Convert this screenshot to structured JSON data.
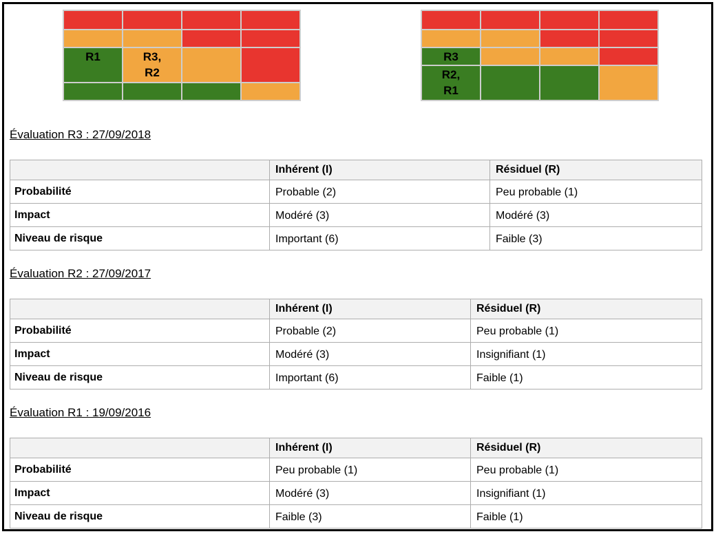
{
  "colors": {
    "red": "#e8352f",
    "orange": "#f2a640",
    "green": "#3a7d22",
    "matrix_border": "#cdcdcd",
    "table_border": "#adadad",
    "header_bg": "#f2f2f2"
  },
  "matrices": [
    {
      "name": "matrix-inherent",
      "rows": [
        [
          {
            "color": "red",
            "label": ""
          },
          {
            "color": "red",
            "label": ""
          },
          {
            "color": "red",
            "label": ""
          },
          {
            "color": "red",
            "label": ""
          }
        ],
        [
          {
            "color": "orange",
            "label": ""
          },
          {
            "color": "orange",
            "label": ""
          },
          {
            "color": "red",
            "label": ""
          },
          {
            "color": "red",
            "label": ""
          }
        ],
        [
          {
            "color": "green",
            "label": "R1"
          },
          {
            "color": "orange",
            "label": "R3,\nR2"
          },
          {
            "color": "orange",
            "label": ""
          },
          {
            "color": "red",
            "label": ""
          }
        ],
        [
          {
            "color": "green",
            "label": ""
          },
          {
            "color": "green",
            "label": ""
          },
          {
            "color": "green",
            "label": ""
          },
          {
            "color": "orange",
            "label": ""
          }
        ]
      ]
    },
    {
      "name": "matrix-residual",
      "rows": [
        [
          {
            "color": "red",
            "label": ""
          },
          {
            "color": "red",
            "label": ""
          },
          {
            "color": "red",
            "label": ""
          },
          {
            "color": "red",
            "label": ""
          }
        ],
        [
          {
            "color": "orange",
            "label": ""
          },
          {
            "color": "orange",
            "label": ""
          },
          {
            "color": "red",
            "label": ""
          },
          {
            "color": "red",
            "label": ""
          }
        ],
        [
          {
            "color": "green",
            "label": "R3"
          },
          {
            "color": "orange",
            "label": ""
          },
          {
            "color": "orange",
            "label": ""
          },
          {
            "color": "red",
            "label": ""
          }
        ],
        [
          {
            "color": "green",
            "label": "R2,\nR1"
          },
          {
            "color": "green",
            "label": ""
          },
          {
            "color": "green",
            "label": ""
          },
          {
            "color": "orange",
            "label": ""
          }
        ]
      ]
    }
  ],
  "sections": [
    {
      "heading": "Évaluation R3 : 27/09/2018",
      "table": {
        "columns": [
          "",
          "Inhérent (I)",
          "Résiduel (R)"
        ],
        "rows": [
          {
            "label": "Probabilité",
            "inherent": "Probable (2)",
            "residual": "Peu probable (1)"
          },
          {
            "label": "Impact",
            "inherent": "Modéré (3)",
            "residual": "Modéré (3)"
          },
          {
            "label": "Niveau de risque",
            "inherent": "Important (6)",
            "residual": "Faible (3)"
          }
        ]
      }
    },
    {
      "heading": "Évaluation R2 : 27/09/2017",
      "table": {
        "columns": [
          "",
          "Inhérent (I)",
          "Résiduel (R)"
        ],
        "rows": [
          {
            "label": "Probabilité",
            "inherent": "Probable (2)",
            "residual": "Peu probable (1)"
          },
          {
            "label": "Impact",
            "inherent": "Modéré (3)",
            "residual": "Insignifiant (1)"
          },
          {
            "label": "Niveau de risque",
            "inherent": "Important (6)",
            "residual": "Faible (1)"
          }
        ]
      }
    },
    {
      "heading": "Évaluation R1 : 19/09/2016",
      "table": {
        "columns": [
          "",
          "Inhérent (I)",
          "Résiduel (R)"
        ],
        "rows": [
          {
            "label": "Probabilité",
            "inherent": "Peu probable (1)",
            "residual": "Peu probable (1)"
          },
          {
            "label": "Impact",
            "inherent": "Modéré (3)",
            "residual": "Insignifiant (1)"
          },
          {
            "label": "Niveau de risque",
            "inherent": "Faible (3)",
            "residual": "Faible (1)"
          }
        ]
      }
    }
  ]
}
